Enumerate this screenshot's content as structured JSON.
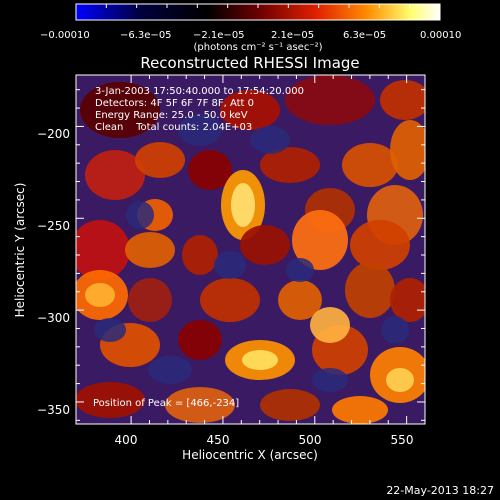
{
  "colorbar": {
    "tick_labels": [
      "−0.00010",
      "−6.3e−05",
      "−2.1e−05",
      "2.1e−05",
      "6.3e−05",
      "0.00010"
    ],
    "units_label": "(photons cm⁻² s⁻¹ asec⁻²)",
    "colors": [
      "#0000ff",
      "#00003c",
      "#000000",
      "#6a0000",
      "#e02000",
      "#ff8c00",
      "#ffff70",
      "#ffffff"
    ]
  },
  "plot": {
    "title": "Reconstructed RHESSI Image",
    "info_lines": [
      "3-Jan-2003 17:50:40.000 to 17:54:20.000",
      "Detectors: 4F 5F 6F 7F 8F, Att 0",
      "Energy Range: 25.0 - 50.0 keV",
      "Clean    Total counts: 2.04E+03"
    ],
    "peak_label": "Position of Peak = [466,-234]",
    "xlabel": "Heliocentric X (arcsec)",
    "ylabel": "Heliocentric Y (arcsec)",
    "x_ticks": [
      "400",
      "450",
      "500",
      "550"
    ],
    "y_ticks": [
      "−200",
      "−250",
      "−300",
      "−350"
    ]
  },
  "footer": {
    "timestamp": "22-May-2013 18:27"
  },
  "chart_data": {
    "type": "heatmap",
    "title": "Reconstructed RHESSI Image",
    "xlabel": "Heliocentric X (arcsec)",
    "ylabel": "Heliocentric Y (arcsec)",
    "xlim": [
      370,
      560
    ],
    "ylim": [
      -362,
      -172
    ],
    "color_range": [
      -0.0001,
      0.0001
    ],
    "peak": [
      466,
      -234
    ]
  }
}
